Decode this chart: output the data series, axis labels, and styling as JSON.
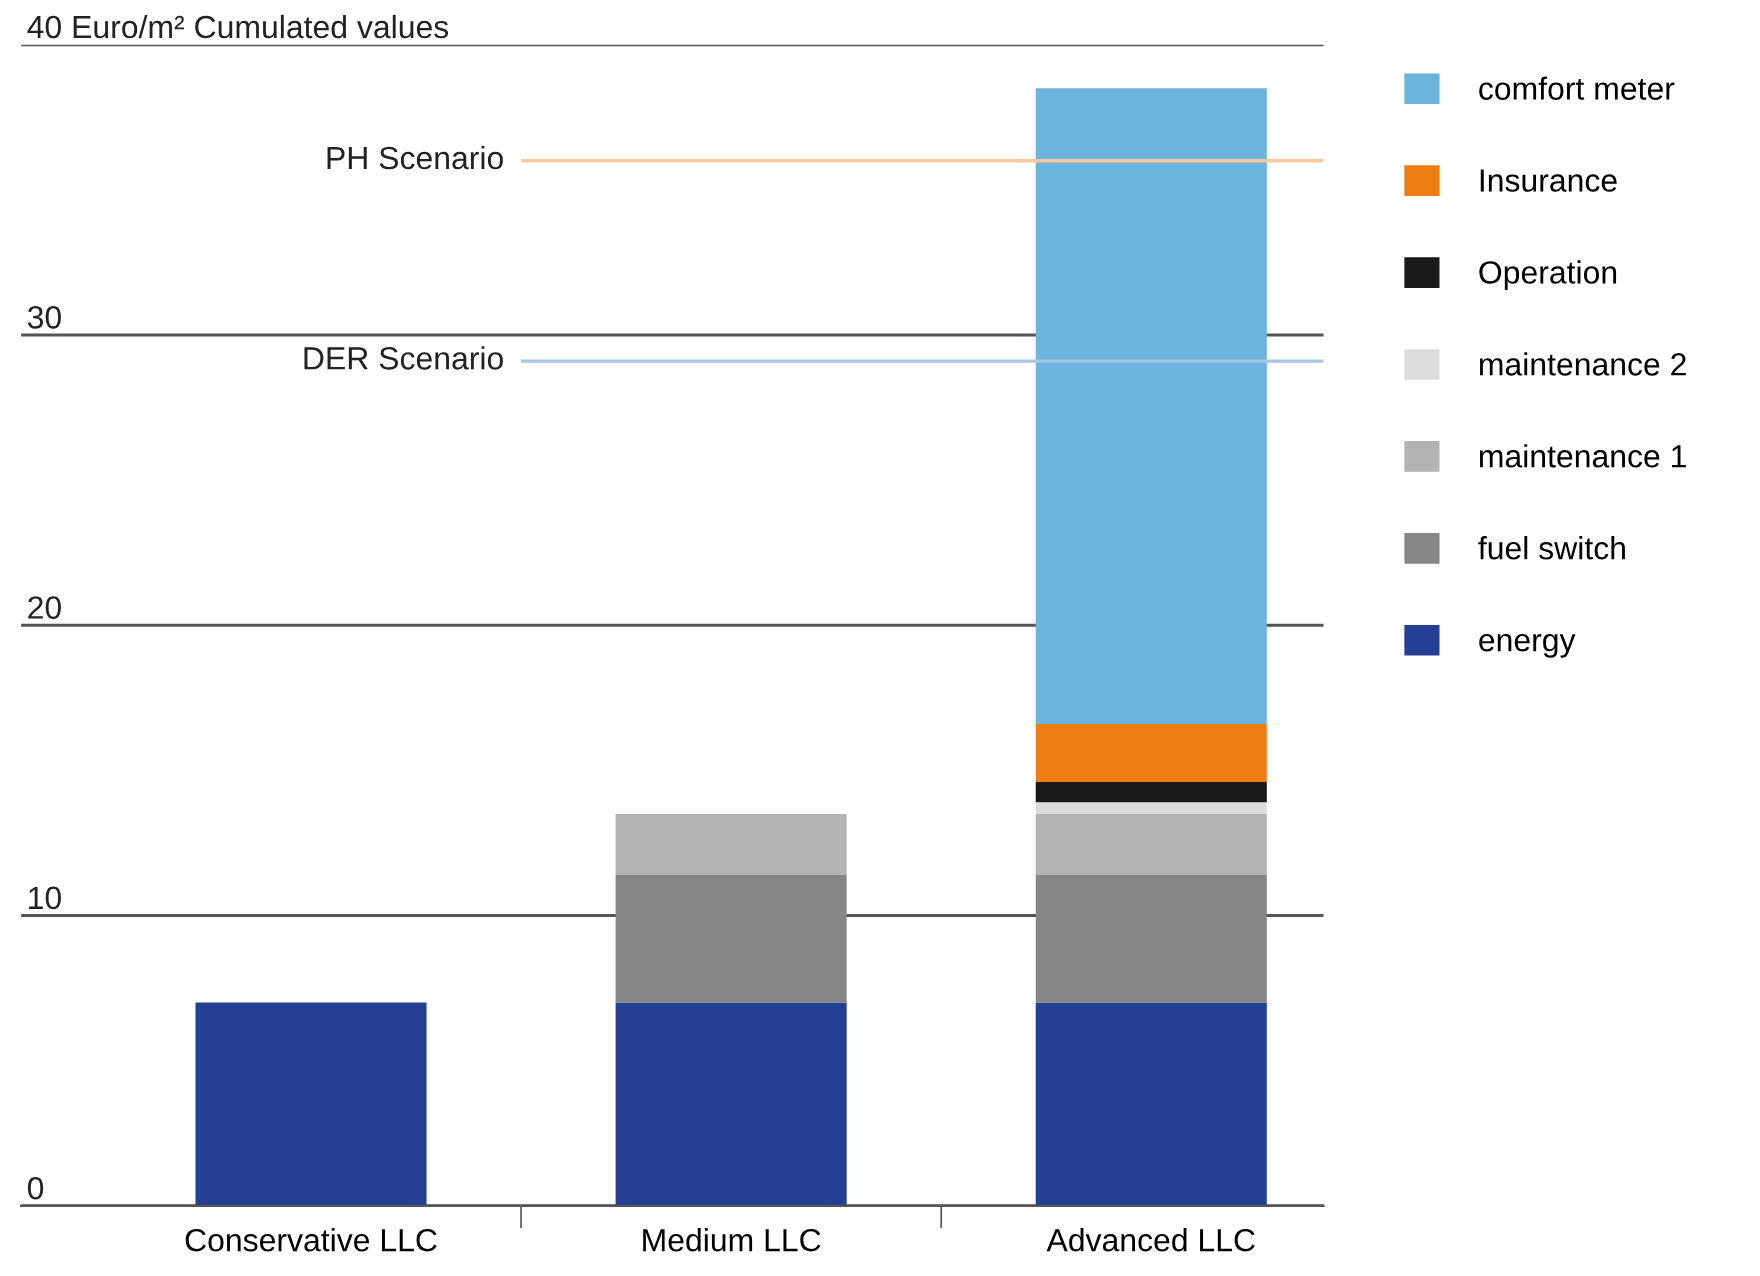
{
  "chart_data": {
    "type": "bar",
    "stacked": true,
    "categories": [
      "Conservative LLC",
      "Medium LLC",
      "Advanced LLC"
    ],
    "series": [
      {
        "name": "energy",
        "color": "#253f95",
        "values": [
          7,
          7,
          7
        ]
      },
      {
        "name": "fuel switch",
        "color": "#868686",
        "values": [
          null,
          4.4,
          4.4
        ]
      },
      {
        "name": "maintenance 1",
        "color": "#b3b3b3",
        "values": [
          null,
          2.1,
          2.1
        ]
      },
      {
        "name": "maintenance 2",
        "color": "#dcdcdc",
        "values": [
          null,
          null,
          0.4
        ]
      },
      {
        "name": "Operation",
        "color": "#1a1a1a",
        "values": [
          null,
          null,
          0.7
        ]
      },
      {
        "name": "Insurance",
        "color": "#ef7d11",
        "values": [
          null,
          null,
          2.0
        ]
      },
      {
        "name": "comfort meter",
        "color": "#6cb4dc",
        "values": [
          null,
          null,
          21.9
        ]
      }
    ],
    "ylim": [
      0,
      40
    ],
    "yticks": [
      0,
      10,
      20,
      30,
      {
        "value": 40,
        "label": "40 Euro/m² Cumulated values"
      }
    ],
    "grid": "y",
    "legend": "right",
    "ref_lines": [
      {
        "axis": "y",
        "value": 36.0,
        "label": "PH Scenario",
        "color": "#f8c9a0"
      },
      {
        "axis": "y",
        "value": 29.1,
        "label": "DER Scenario",
        "color": "#a8c4e8"
      }
    ]
  }
}
